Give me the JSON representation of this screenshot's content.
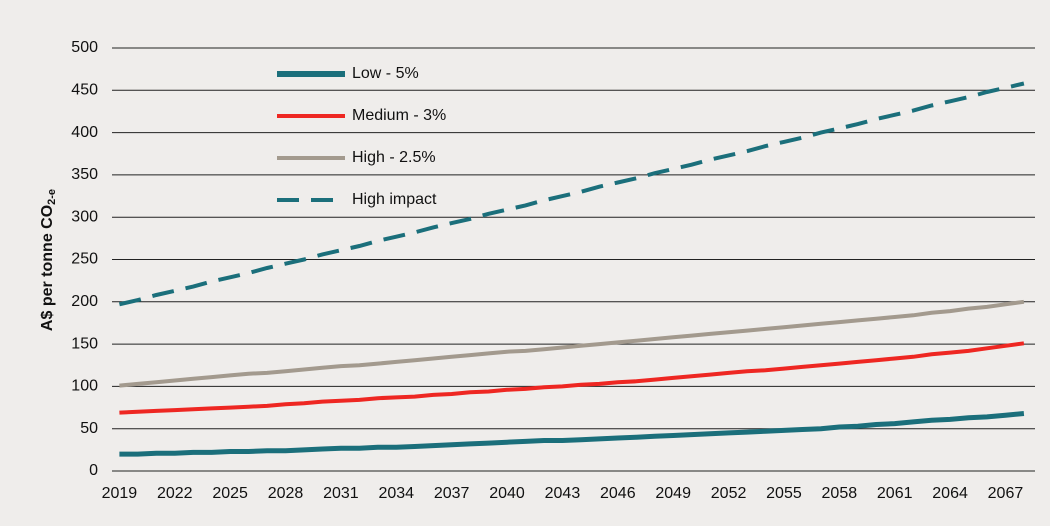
{
  "chart_data": {
    "type": "line",
    "ylabel": "A$ per tonne CO",
    "ylabel_subscript": "2-e",
    "x": [
      2019,
      2020,
      2021,
      2022,
      2023,
      2024,
      2025,
      2026,
      2027,
      2028,
      2029,
      2030,
      2031,
      2032,
      2033,
      2034,
      2035,
      2036,
      2037,
      2038,
      2039,
      2040,
      2041,
      2042,
      2043,
      2044,
      2045,
      2046,
      2047,
      2048,
      2049,
      2050,
      2051,
      2052,
      2053,
      2054,
      2055,
      2056,
      2057,
      2058,
      2059,
      2060,
      2061,
      2062,
      2063,
      2064,
      2065,
      2066,
      2067,
      2068
    ],
    "xlim": [
      2018.6,
      2068.6
    ],
    "xticks": [
      2019,
      2022,
      2025,
      2028,
      2031,
      2034,
      2037,
      2040,
      2043,
      2046,
      2049,
      2052,
      2055,
      2058,
      2061,
      2064,
      2067
    ],
    "ylim": [
      0,
      500
    ],
    "yticks": [
      0,
      50,
      100,
      150,
      200,
      250,
      300,
      350,
      400,
      450,
      500
    ],
    "grid": true,
    "legend": "upper-left",
    "series": [
      {
        "name": "Low - 5%",
        "color": "#1b6f7b",
        "dash": false,
        "values": [
          20,
          20,
          21,
          21,
          22,
          22,
          23,
          23,
          24,
          24,
          25,
          26,
          27,
          27,
          28,
          28,
          29,
          30,
          31,
          32,
          33,
          34,
          35,
          36,
          36,
          37,
          38,
          39,
          40,
          41,
          42,
          43,
          44,
          45,
          46,
          47,
          48,
          49,
          50,
          52,
          53,
          55,
          56,
          58,
          60,
          61,
          63,
          64,
          66,
          68
        ]
      },
      {
        "name": "Medium - 3%",
        "color": "#ee2722",
        "dash": false,
        "values": [
          69,
          70,
          71,
          72,
          73,
          74,
          75,
          76,
          77,
          79,
          80,
          82,
          83,
          84,
          86,
          87,
          88,
          90,
          91,
          93,
          94,
          96,
          97,
          99,
          100,
          102,
          103,
          105,
          106,
          108,
          110,
          112,
          114,
          116,
          118,
          119,
          121,
          123,
          125,
          127,
          129,
          131,
          133,
          135,
          138,
          140,
          142,
          145,
          148,
          151
        ]
      },
      {
        "name": "High - 2.5%",
        "color": "#a39a8e",
        "dash": false,
        "values": [
          101,
          103,
          105,
          107,
          109,
          111,
          113,
          115,
          116,
          118,
          120,
          122,
          124,
          125,
          127,
          129,
          131,
          133,
          135,
          137,
          139,
          141,
          142,
          144,
          146,
          148,
          150,
          152,
          154,
          156,
          158,
          160,
          162,
          164,
          166,
          168,
          170,
          172,
          174,
          176,
          178,
          180,
          182,
          184,
          187,
          189,
          192,
          194,
          197,
          200
        ]
      },
      {
        "name": "High impact",
        "color": "#1b6f7b",
        "dash": true,
        "values": [
          197,
          202,
          208,
          213,
          218,
          224,
          229,
          234,
          240,
          245,
          250,
          256,
          261,
          266,
          272,
          277,
          282,
          288,
          293,
          298,
          304,
          309,
          314,
          320,
          325,
          330,
          336,
          341,
          346,
          352,
          357,
          362,
          368,
          373,
          378,
          384,
          389,
          394,
          400,
          405,
          410,
          416,
          421,
          426,
          432,
          437,
          442,
          448,
          453,
          458
        ]
      }
    ]
  }
}
